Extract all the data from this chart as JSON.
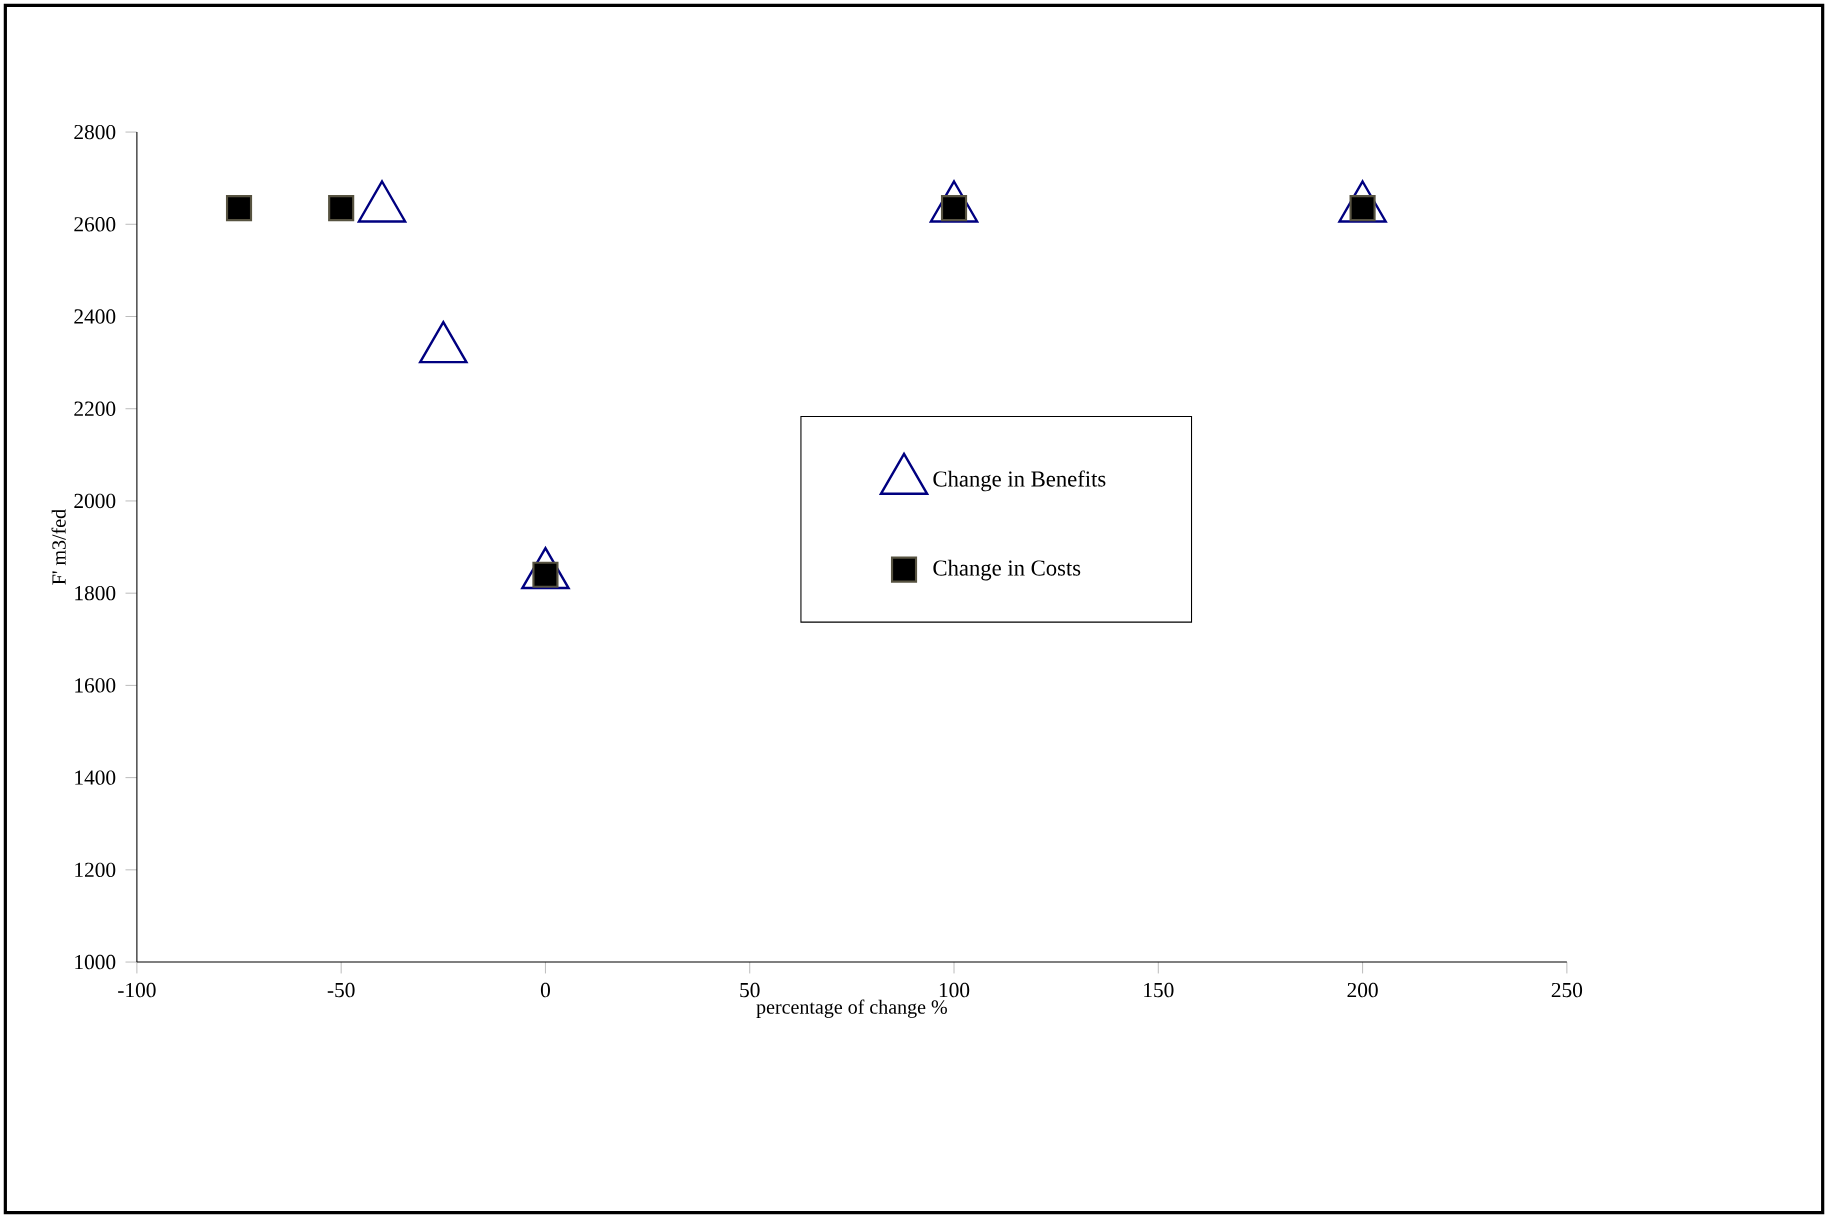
{
  "chart_data": {
    "type": "scatter",
    "xlabel": "percentage of change   %",
    "ylabel": "F' m3/fed",
    "xlim": [
      -100,
      250
    ],
    "xticks": [
      -100,
      -50,
      0,
      50,
      100,
      150,
      200,
      250
    ],
    "ylim": [
      1000,
      2800
    ],
    "yticks": [
      1000,
      1200,
      1400,
      1600,
      1800,
      2000,
      2200,
      2400,
      2600,
      2800
    ],
    "grid": false,
    "legend": "right",
    "series": [
      {
        "name": "Change in Benefits",
        "color": "#000080",
        "marker": "triangle",
        "x": [
          -40,
          -25,
          0,
          100,
          200
        ],
        "values": [
          2635,
          2330,
          1840,
          2635,
          2635
        ]
      },
      {
        "name": "Change in Costs",
        "color": "#000000",
        "marker": "square",
        "x": [
          -75,
          -50,
          0,
          100,
          200
        ],
        "values": [
          2635,
          2635,
          1840,
          2635,
          2635
        ]
      }
    ]
  }
}
